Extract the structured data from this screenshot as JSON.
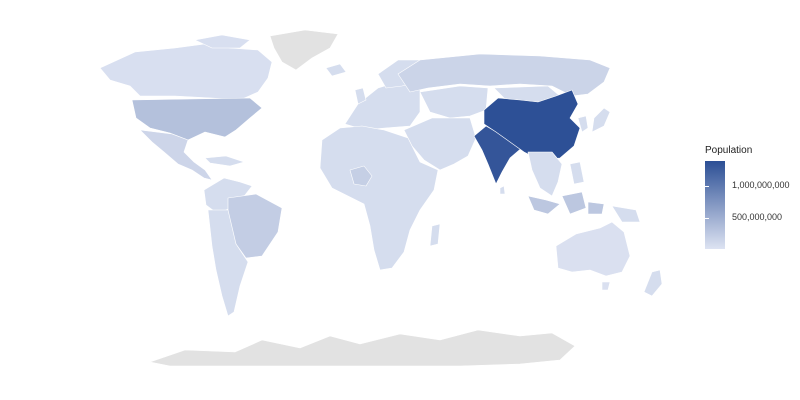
{
  "map": {
    "type": "choropleth",
    "projection": "robinson",
    "legend": {
      "title": "Population",
      "labels": [
        "1,000,000,000",
        "500,000,000"
      ],
      "tick_values": [
        1000000000,
        500000000
      ],
      "min_value": 0,
      "max_value": 1400000000,
      "color_low": "#dde3f2",
      "color_high": "#2c4f95",
      "no_data_color": "#e2e2e2",
      "border_color": "#ffffff",
      "position": "right"
    },
    "countries": [
      {
        "name": "China",
        "population": 1390000000
      },
      {
        "name": "India",
        "population": 1340000000
      },
      {
        "name": "United States",
        "population": 325000000
      },
      {
        "name": "Indonesia",
        "population": 264000000
      },
      {
        "name": "Brazil",
        "population": 209000000
      },
      {
        "name": "Nigeria",
        "population": 191000000
      },
      {
        "name": "Russia",
        "population": 144000000
      },
      {
        "name": "Mexico",
        "population": 129000000
      },
      {
        "name": "Canada",
        "population": 37000000
      },
      {
        "name": "Australia",
        "population": 25000000
      },
      {
        "name": "Greenland",
        "population": null
      },
      {
        "name": "Antarctica",
        "population": null
      }
    ]
  }
}
